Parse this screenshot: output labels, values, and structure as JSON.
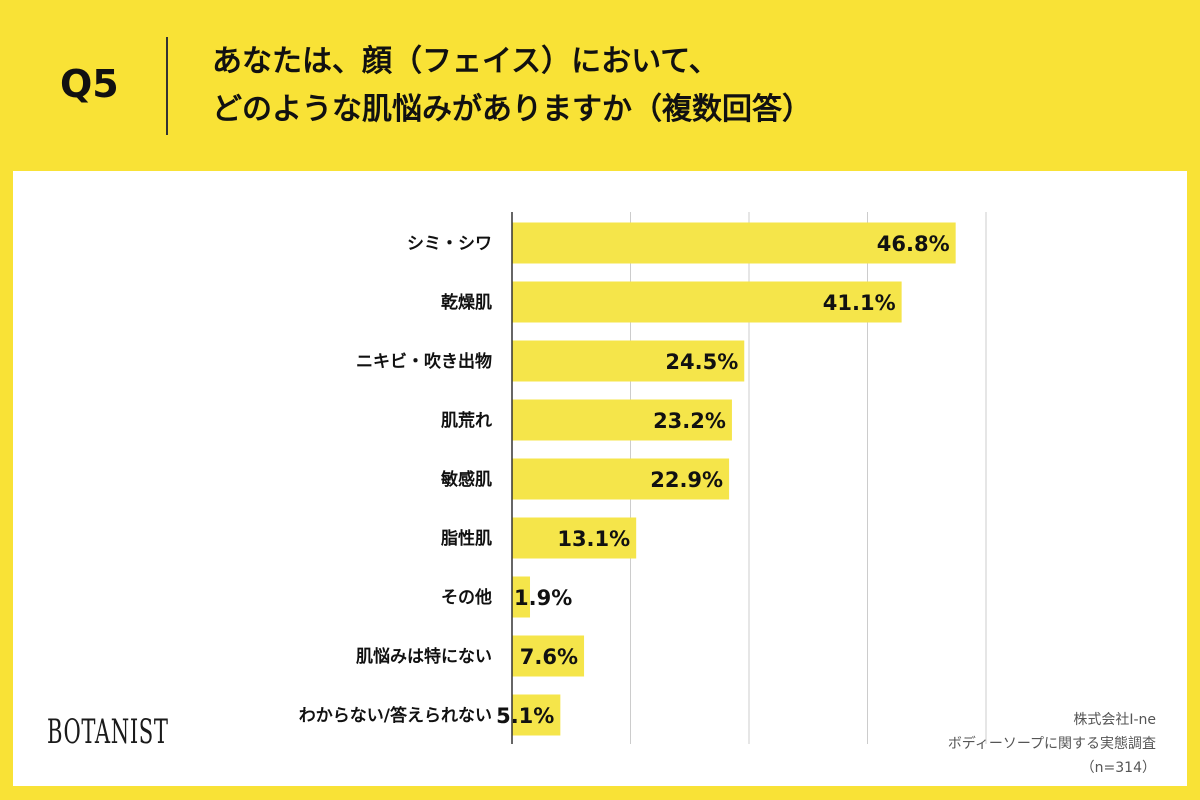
{
  "header": {
    "q_number": "Q5",
    "title_line1": "あなたは、顔（フェイス）において、",
    "title_line2": "どのような肌悩みがありますか（複数回答）"
  },
  "logo": {
    "text": "BOTANIST"
  },
  "source": {
    "company": "株式会社I-ne",
    "survey": "ボディーソープに関する実態調査",
    "sample": "（n=314）"
  },
  "colors": {
    "background": "#f9e236",
    "bar": "#f5e54a",
    "grid": "#cccccc",
    "axis": "#333333"
  },
  "chart_data": {
    "type": "bar",
    "orientation": "horizontal",
    "title": "あなたは、顔（フェイス）において、どのような肌悩みがありますか（複数回答）",
    "categories": [
      "シミ・シワ",
      "乾燥肌",
      "ニキビ・吹き出物",
      "肌荒れ",
      "敏感肌",
      "脂性肌",
      "その他",
      "肌悩みは特にない",
      "わからない/答えられない"
    ],
    "values": [
      46.8,
      41.1,
      24.5,
      23.2,
      22.9,
      13.1,
      1.9,
      7.6,
      5.1
    ],
    "value_labels": [
      "46.8%",
      "41.1%",
      "24.5%",
      "23.2%",
      "22.9%",
      "13.1%",
      "1.9%",
      "7.6%",
      "5.1%"
    ],
    "xlim": [
      0,
      50
    ],
    "grid_step": 12.5,
    "grid": true,
    "unit": "%"
  }
}
